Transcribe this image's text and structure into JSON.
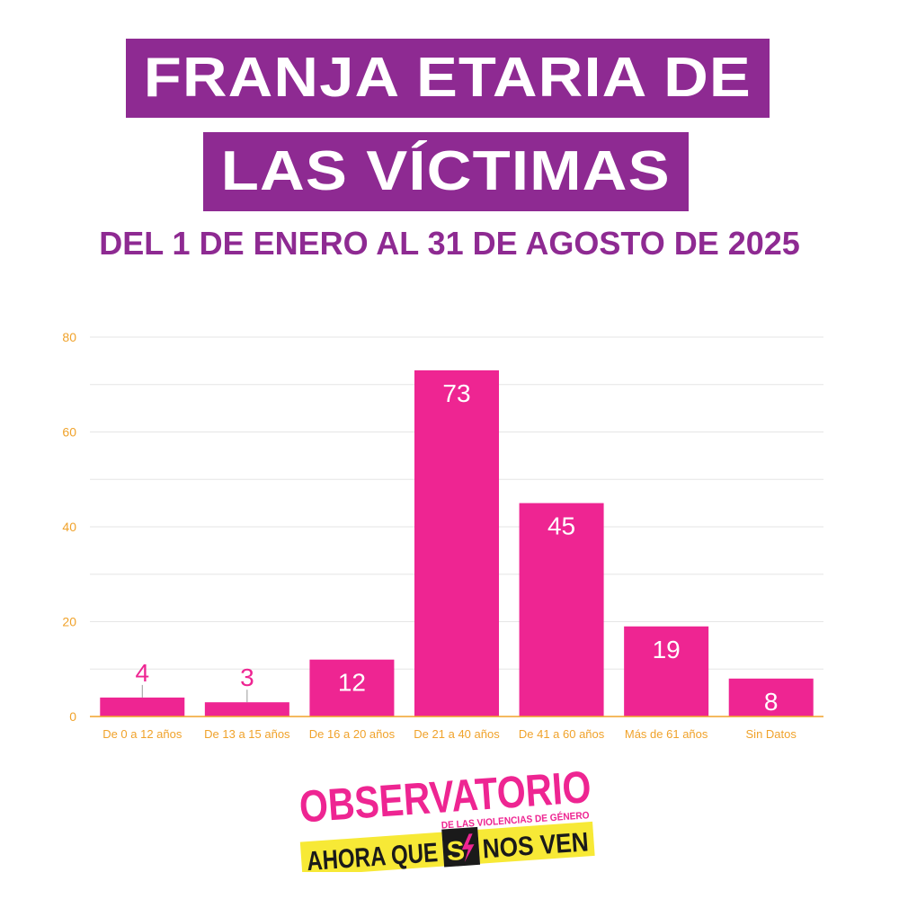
{
  "title": {
    "line1": "FRANJA ETARIA DE",
    "line2": "LAS VÍCTIMAS",
    "subtitle": "DEL 1 DE ENERO AL 31 DE AGOSTO DE 2025"
  },
  "colors": {
    "title_bg": "#8e2a92",
    "bar": "#ee2592",
    "axis_ticks": "#f0a22a",
    "grid": "#e6e6e6",
    "logo_yellow": "#f7e936",
    "logo_pink": "#ee2592"
  },
  "chart_data": {
    "type": "bar",
    "categories": [
      "De 0 a 12 años",
      "De 13 a 15 años",
      "De 16 a 20 años",
      "De 21 a 40 años",
      "De 41 a 60 años",
      "Más de 61 años",
      "Sin Datos"
    ],
    "values": [
      4,
      3,
      12,
      73,
      45,
      19,
      8
    ],
    "yticks": [
      0,
      20,
      40,
      60,
      80
    ],
    "ylim": [
      0,
      80
    ],
    "grid": true,
    "xlabel": "",
    "ylabel": ""
  },
  "logo": {
    "line1": "OBSERVATORIO",
    "tagline": "DE LAS VIOLENCIAS DE GÉNERO",
    "part_a": "AHORA QUE",
    "part_b": "S",
    "part_c": "NOS VEN"
  }
}
